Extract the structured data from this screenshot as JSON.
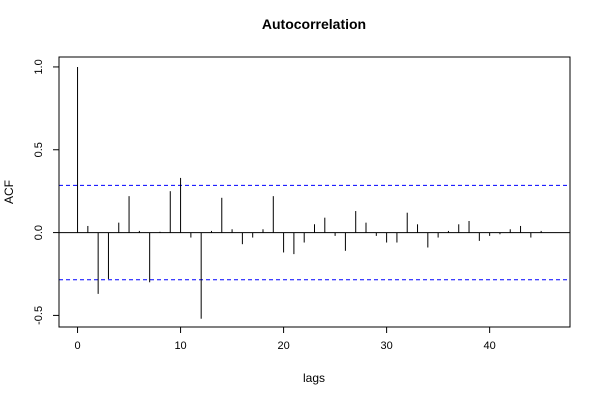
{
  "chart_data": {
    "type": "bar",
    "title": "Autocorrelation",
    "xlabel": "lags",
    "ylabel": "ACF",
    "xlim": [
      -1.8,
      47.8
    ],
    "ylim": [
      -0.57,
      1.06
    ],
    "x_ticks": [
      0,
      10,
      20,
      30,
      40
    ],
    "x_tick_labels": [
      "0",
      "10",
      "20",
      "30",
      "40"
    ],
    "y_ticks": [
      -0.5,
      0.0,
      0.5,
      1.0
    ],
    "y_tick_labels": [
      "-0.5",
      "0.0",
      "0.5",
      "1.0"
    ],
    "confidence_bounds": [
      0.285,
      -0.285
    ],
    "confidence_color": "#0000ff",
    "zero_line": true,
    "grid": false,
    "lags": [
      0,
      1,
      2,
      3,
      4,
      5,
      6,
      7,
      8,
      9,
      10,
      11,
      12,
      13,
      14,
      15,
      16,
      17,
      18,
      19,
      20,
      21,
      22,
      23,
      24,
      25,
      26,
      27,
      28,
      29,
      30,
      31,
      32,
      33,
      34,
      35,
      36,
      37,
      38,
      39,
      40,
      41,
      42,
      43,
      44,
      45
    ],
    "values": [
      1.0,
      0.04,
      -0.37,
      -0.28,
      0.06,
      0.22,
      0.01,
      -0.3,
      0.005,
      0.25,
      0.33,
      -0.03,
      -0.52,
      0.01,
      0.21,
      0.02,
      -0.07,
      -0.03,
      0.02,
      0.22,
      -0.12,
      -0.13,
      -0.06,
      0.05,
      0.09,
      -0.02,
      -0.11,
      0.13,
      0.06,
      -0.02,
      -0.06,
      -0.06,
      0.12,
      0.05,
      -0.09,
      -0.03,
      0.01,
      0.05,
      0.07,
      -0.05,
      -0.02,
      -0.01,
      0.02,
      0.04,
      -0.03,
      0.01
    ]
  }
}
